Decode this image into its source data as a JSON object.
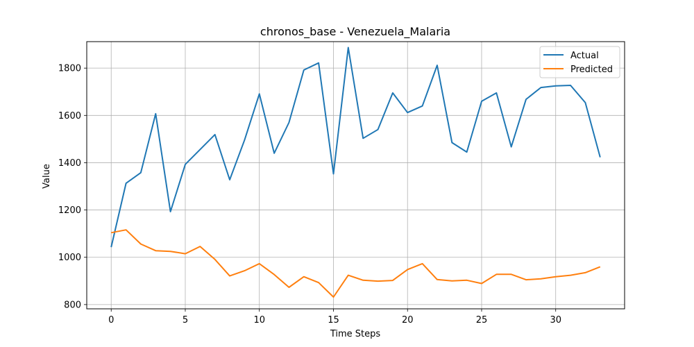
{
  "chart_data": {
    "type": "line",
    "title": "chronos_base - Venezuela_Malaria",
    "xlabel": "Time Steps",
    "ylabel": "Value",
    "x": [
      0,
      1,
      2,
      3,
      4,
      5,
      6,
      7,
      8,
      9,
      10,
      11,
      12,
      13,
      14,
      15,
      16,
      17,
      18,
      19,
      20,
      21,
      22,
      23,
      24,
      25,
      26,
      27,
      28,
      29,
      30,
      31,
      32,
      33
    ],
    "xlim": [
      -1.65,
      34.65
    ],
    "ylim": [
      782,
      1912
    ],
    "xticks": [
      0,
      5,
      10,
      15,
      20,
      25,
      30
    ],
    "yticks": [
      800,
      1000,
      1200,
      1400,
      1600,
      1800
    ],
    "grid": true,
    "legend_position": "top-right",
    "series": [
      {
        "name": "Actual",
        "color": "#1f77b4",
        "values": [
          1043,
          1313,
          1358,
          1607,
          1193,
          1393,
          1456,
          1519,
          1328,
          1496,
          1691,
          1440,
          1570,
          1792,
          1822,
          1353,
          1887,
          1503,
          1540,
          1695,
          1612,
          1640,
          1812,
          1485,
          1445,
          1660,
          1695,
          1467,
          1668,
          1718,
          1725,
          1727,
          1654,
          1423
        ]
      },
      {
        "name": "Predicted",
        "color": "#ff7f0e",
        "values": [
          1104,
          1116,
          1056,
          1028,
          1025,
          1015,
          1046,
          991,
          921,
          943,
          973,
          927,
          873,
          918,
          893,
          832,
          924,
          903,
          899,
          902,
          948,
          973,
          906,
          900,
          903,
          889,
          928,
          928,
          905,
          909,
          918,
          924,
          935,
          960
        ]
      }
    ]
  }
}
